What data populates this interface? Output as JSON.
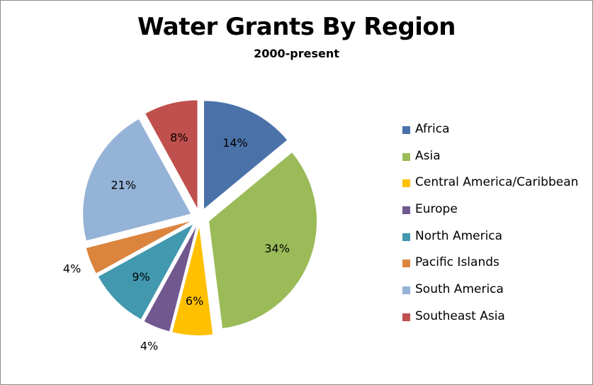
{
  "chart_data": {
    "type": "pie",
    "title": "Water Grants By Region",
    "subtitle": "2000-present",
    "legend_position": "right",
    "slices": [
      {
        "name": "Africa",
        "value": 14,
        "label": "14%",
        "color": "#4a72a8"
      },
      {
        "name": "Asia",
        "value": 34,
        "label": "34%",
        "color": "#9bbb59"
      },
      {
        "name": "Central America/Caribbean",
        "value": 6,
        "label": "6%",
        "color": "#ffc000"
      },
      {
        "name": "Europe",
        "value": 4,
        "label": "4%",
        "color": "#71588f"
      },
      {
        "name": "North America",
        "value": 9,
        "label": "9%",
        "color": "#4198af"
      },
      {
        "name": "Pacific Islands",
        "value": 4,
        "label": "4%",
        "color": "#db843d"
      },
      {
        "name": "South America",
        "value": 21,
        "label": "21%",
        "color": "#95b3d7"
      },
      {
        "name": "Southeast Asia",
        "value": 8,
        "label": "8%",
        "color": "#c0504d"
      }
    ]
  }
}
